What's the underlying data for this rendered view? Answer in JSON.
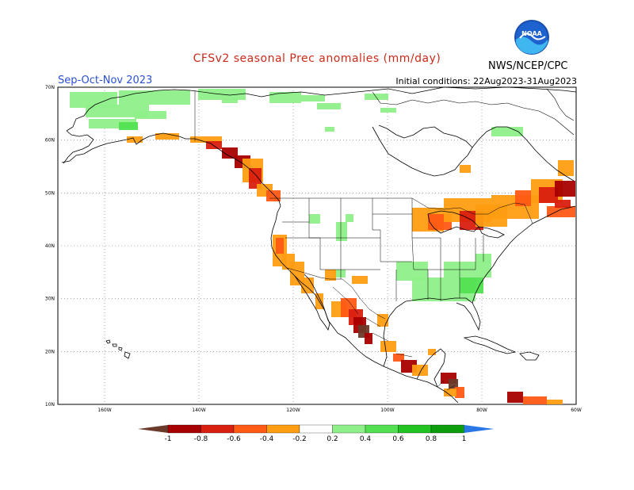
{
  "header": {
    "title": "CFSv2 seasonal Prec anomalies (mm/day)",
    "season": "Sep-Oct-Nov 2023",
    "initial_conditions": "Initial conditions: 22Aug2023-31Aug2023",
    "agency": "NWS/NCEP/CPC",
    "logo_text": "NOAA"
  },
  "map": {
    "latitude_labels": [
      "70N",
      "60N",
      "50N",
      "40N",
      "30N",
      "20N",
      "10N"
    ],
    "longitude_labels": [
      "160W",
      "140W",
      "120W",
      "100W",
      "80W",
      "60W"
    ],
    "extent": {
      "lon_min": -170,
      "lon_max": -60,
      "lat_min": 10,
      "lat_max": 70
    }
  },
  "colorbar": {
    "labels": [
      "-1",
      "-0.8",
      "-0.6",
      "-0.4",
      "-0.2",
      "0.2",
      "0.4",
      "0.6",
      "0.8",
      "1"
    ],
    "colors": [
      "#6b3a2a",
      "#a80000",
      "#d91f0f",
      "#ff5a14",
      "#ff9d12",
      "#ffffff",
      "#8ff08a",
      "#52e052",
      "#21c421",
      "#0c9e0c",
      "#2a78e6"
    ]
  },
  "colors": {
    "dry_strong": "#a80000",
    "dry_mid": "#d91f0f",
    "dry_light": "#ff5a14",
    "dry_faint": "#ff9d12",
    "dry_extreme": "#6b3a2a",
    "wet_faint": "#8ff08a",
    "wet_light": "#52e052"
  }
}
